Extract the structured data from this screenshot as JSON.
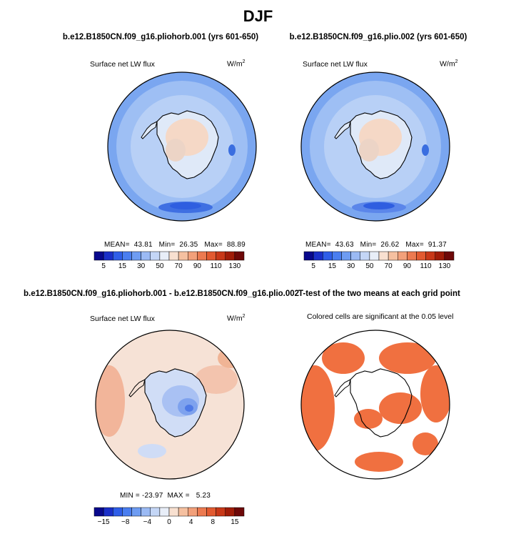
{
  "figure": {
    "title": "DJF"
  },
  "panels": [
    {
      "case": "b.e12.B1850CN.f09_g16.pliohorb.001 (yrs 601-650)",
      "variable": "Surface net LW flux",
      "units": "W/m",
      "units_exp": "2",
      "mean_label": "MEAN=",
      "mean": "43.81",
      "min_label": "Min=",
      "min": "26.35",
      "max_label": "Max=",
      "max": "88.89"
    },
    {
      "case": "b.e12.B1850CN.f09_g16.plio.002 (yrs 601-650)",
      "variable": "Surface net LW flux",
      "units": "W/m",
      "units_exp": "2",
      "mean_label": "MEAN=",
      "mean": "43.63",
      "min_label": "Min=",
      "min": "26.62",
      "max_label": "Max=",
      "max": "91.37"
    },
    {
      "case": "b.e12.B1850CN.f09_g16.pliohorb.001 - b.e12.B1850CN.f09_g16.plio.002",
      "variable": "Surface net LW flux",
      "units": "W/m",
      "units_exp": "2",
      "min_label": "MIN =",
      "min": "-23.97",
      "max_label": "MAX =",
      "max": "5.23"
    },
    {
      "title": "T-test of the two means at each grid point",
      "subtitle": "Colored cells are significant at the 0.05 level"
    }
  ],
  "chart_data": [
    {
      "type": "heatmap",
      "projection": "south polar stereographic",
      "colorbar": {
        "ticks": [
          "5",
          "15",
          "30",
          "50",
          "70",
          "90",
          "110",
          "130"
        ],
        "colors": [
          "#08088c",
          "#1a2fc8",
          "#2f5ee8",
          "#4a7ef0",
          "#6e9cf2",
          "#9bbaf4",
          "#c4d6f6",
          "#e8eef8",
          "#f8e0d0",
          "#f5c0a0",
          "#f2a07a",
          "#ec7a50",
          "#e25a30",
          "#c83818",
          "#a01c08",
          "#6e0808"
        ]
      }
    },
    {
      "type": "heatmap",
      "projection": "south polar stereographic",
      "colorbar": {
        "ticks": [
          "5",
          "15",
          "30",
          "50",
          "70",
          "90",
          "110",
          "130"
        ],
        "colors": [
          "#08088c",
          "#1a2fc8",
          "#2f5ee8",
          "#4a7ef0",
          "#6e9cf2",
          "#9bbaf4",
          "#c4d6f6",
          "#e8eef8",
          "#f8e0d0",
          "#f5c0a0",
          "#f2a07a",
          "#ec7a50",
          "#e25a30",
          "#c83818",
          "#a01c08",
          "#6e0808"
        ]
      }
    },
    {
      "type": "heatmap",
      "projection": "south polar stereographic",
      "colorbar": {
        "ticks": [
          "−15",
          "−8",
          "−4",
          "0",
          "4",
          "8",
          "15"
        ],
        "colors": [
          "#08088c",
          "#1a2fc8",
          "#2f5ee8",
          "#4a7ef0",
          "#6e9cf2",
          "#9bbaf4",
          "#c4d6f6",
          "#e8eef8",
          "#f8e0d0",
          "#f5c0a0",
          "#f2a07a",
          "#ec7a50",
          "#e25a30",
          "#c83818",
          "#a01c08",
          "#6e0808"
        ]
      }
    },
    {
      "type": "heatmap",
      "projection": "south polar stereographic",
      "significance_color": "#f07040"
    }
  ],
  "colors": {
    "ocean1": "#7aa6f0",
    "ocean2": "#9ebff4",
    "ice": "#dfe9f8",
    "warm": "#f5d8c6",
    "diffBase": "#f6e2d6",
    "sig": "#f07040"
  }
}
